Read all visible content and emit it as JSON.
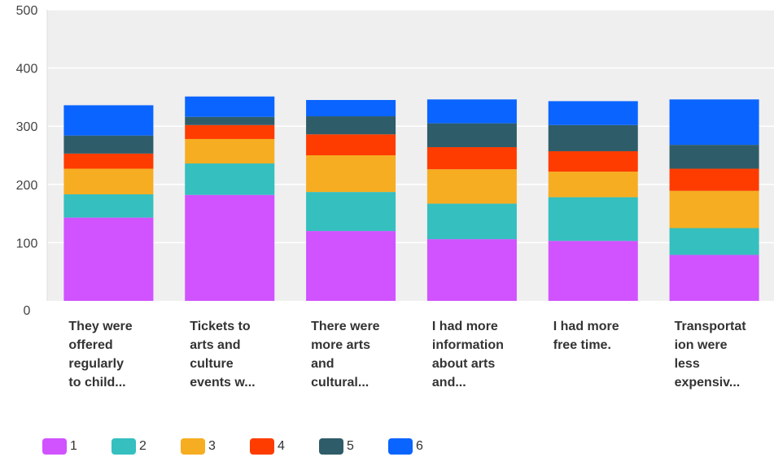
{
  "chart_data": {
    "type": "bar",
    "stacked": true,
    "categories": [
      [
        "They were",
        "offered",
        "regularly",
        "to child..."
      ],
      [
        "Tickets to",
        "arts and",
        "culture",
        "events w..."
      ],
      [
        "There were",
        "more arts",
        "and",
        "cultural..."
      ],
      [
        "I had more",
        "information",
        "about arts",
        "and..."
      ],
      [
        "I had more",
        "free time."
      ],
      [
        "Transportat",
        "ion were",
        "less",
        "expensiv..."
      ]
    ],
    "series": [
      {
        "name": "1",
        "color": "#d053ff",
        "values": [
          143,
          182,
          120,
          106,
          103,
          79
        ]
      },
      {
        "name": "2",
        "color": "#35bfbf",
        "values": [
          40,
          54,
          67,
          61,
          75,
          46
        ]
      },
      {
        "name": "3",
        "color": "#f6ad22",
        "values": [
          44,
          42,
          63,
          59,
          44,
          64
        ]
      },
      {
        "name": "4",
        "color": "#fe3c00",
        "values": [
          26,
          24,
          36,
          38,
          35,
          38
        ]
      },
      {
        "name": "5",
        "color": "#2f5c69",
        "values": [
          31,
          14,
          31,
          41,
          45,
          41
        ]
      },
      {
        "name": "6",
        "color": "#0a64ff",
        "values": [
          52,
          35,
          28,
          41,
          41,
          78
        ]
      }
    ],
    "ylim": [
      0,
      500
    ],
    "yticks": [
      0,
      100,
      200,
      300,
      400,
      500
    ],
    "grid": true,
    "legend_position": "bottom-left",
    "plot_background": "#efefef",
    "title": "",
    "xlabel": "",
    "ylabel": ""
  }
}
